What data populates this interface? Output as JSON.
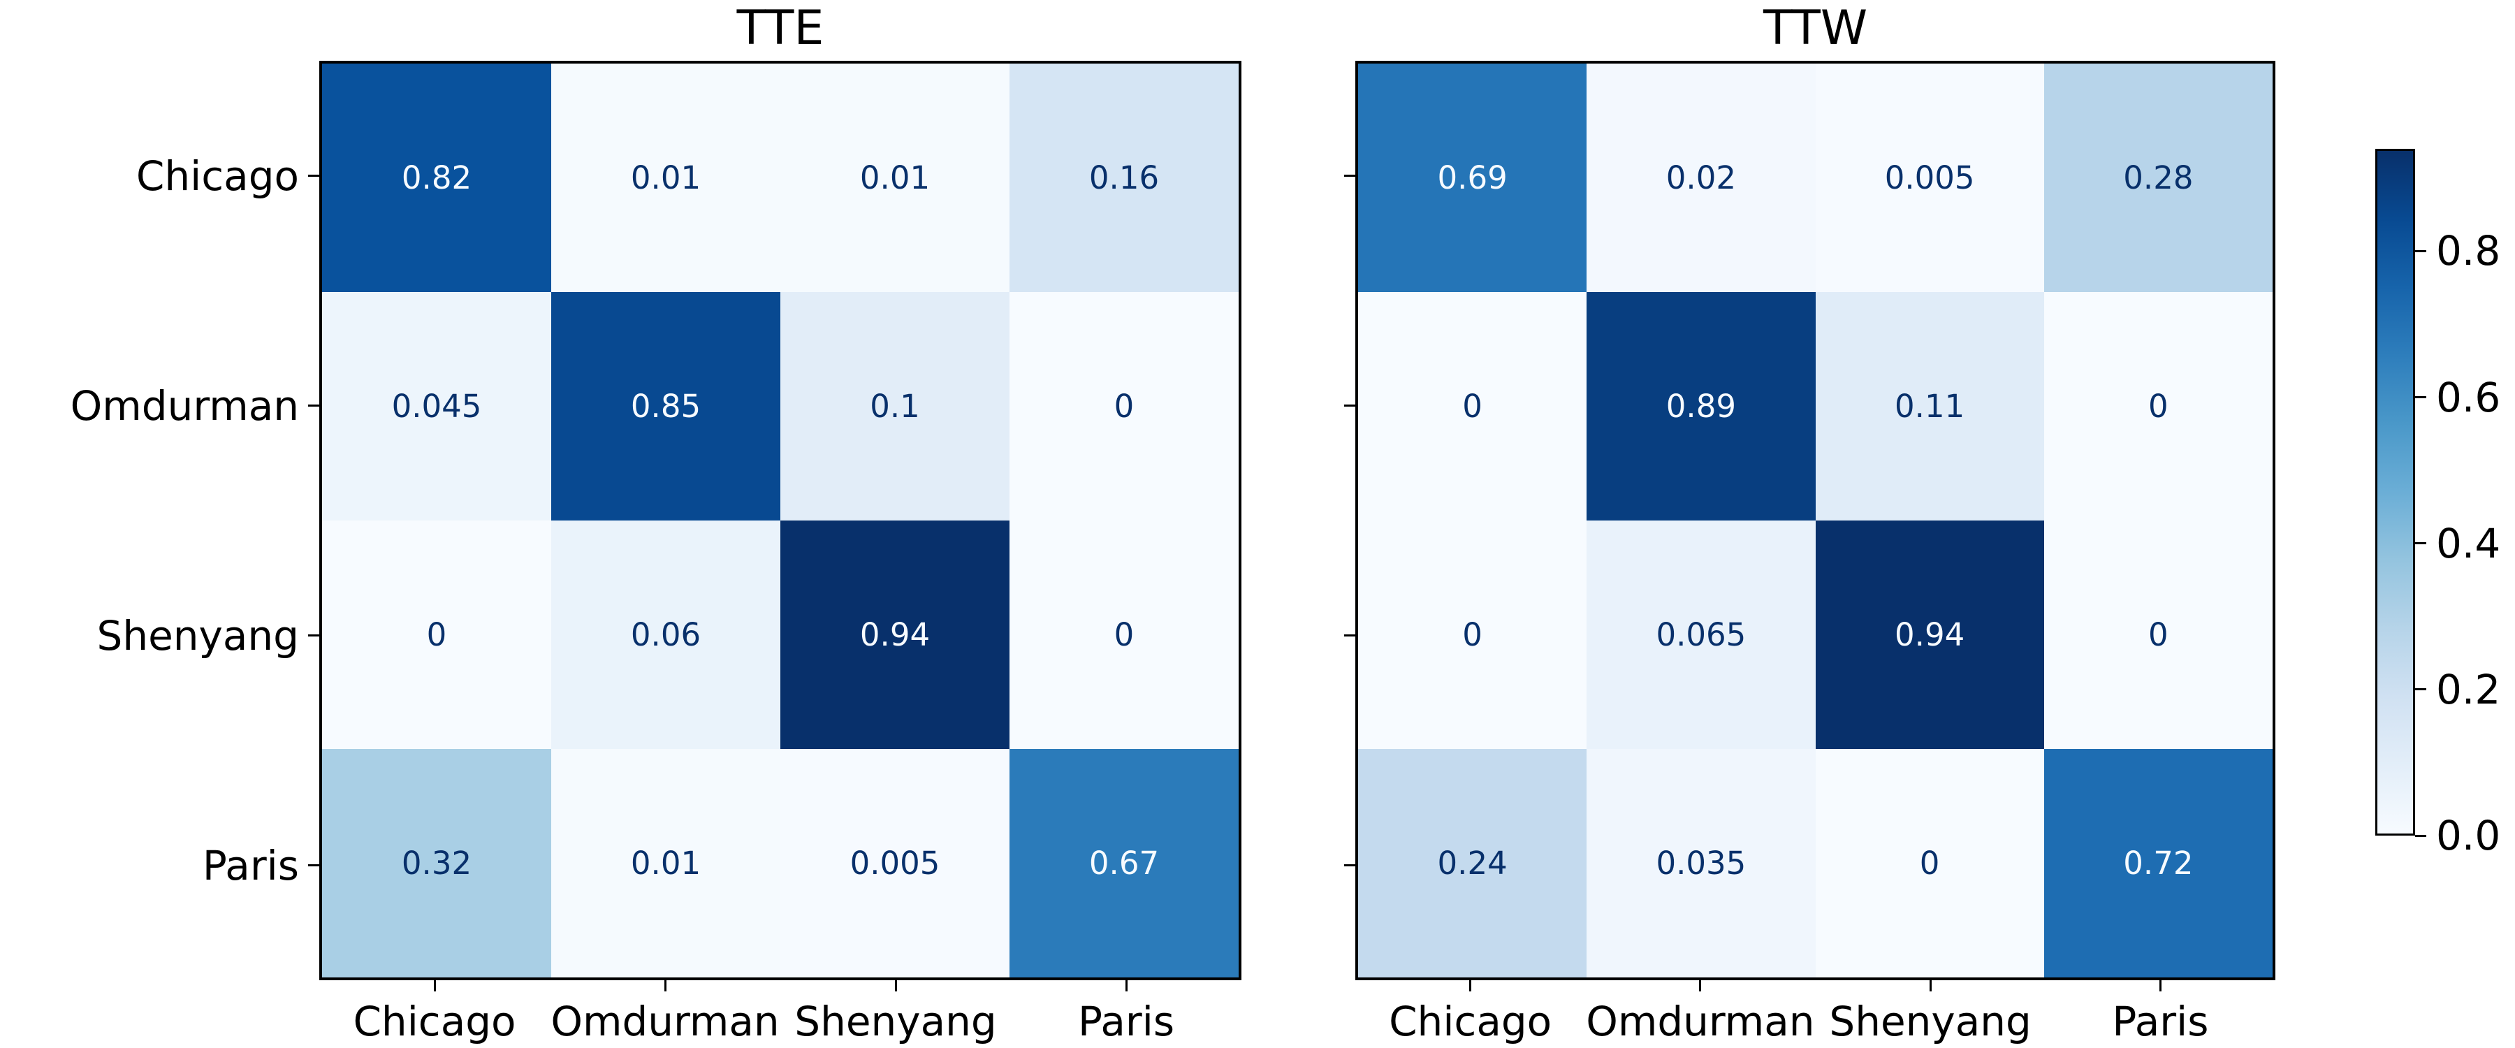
{
  "chart_data": [
    {
      "type": "heatmap",
      "title": "TTE",
      "x_categories": [
        "Chicago",
        "Omdurman",
        "Shenyang",
        "Paris"
      ],
      "y_categories": [
        "Chicago",
        "Omdurman",
        "Shenyang",
        "Paris"
      ],
      "values": [
        [
          0.82,
          0.01,
          0.01,
          0.16
        ],
        [
          0.045,
          0.85,
          0.1,
          0
        ],
        [
          0,
          0.06,
          0.94,
          0
        ],
        [
          0.32,
          0.01,
          0.005,
          0.67
        ]
      ],
      "colormap": "Blues",
      "vmin": 0,
      "vmax": 0.94,
      "grid": false,
      "legend_position": "none"
    },
    {
      "type": "heatmap",
      "title": "TTW",
      "x_categories": [
        "Chicago",
        "Omdurman",
        "Shenyang",
        "Paris"
      ],
      "y_categories": [
        "Chicago",
        "Omdurman",
        "Shenyang",
        "Paris"
      ],
      "values": [
        [
          0.69,
          0.02,
          0.005,
          0.28
        ],
        [
          0,
          0.89,
          0.11,
          0
        ],
        [
          0,
          0.065,
          0.94,
          0
        ],
        [
          0.24,
          0.035,
          0,
          0.72
        ]
      ],
      "colormap": "Blues",
      "vmin": 0,
      "vmax": 0.94,
      "grid": false,
      "legend_position": "none"
    }
  ],
  "colorbar": {
    "vmin": 0,
    "vmax": 0.94,
    "ticks": [
      {
        "label": "0.0",
        "value": 0.0
      },
      {
        "label": "0.2",
        "value": 0.2
      },
      {
        "label": "0.4",
        "value": 0.4
      },
      {
        "label": "0.6",
        "value": 0.6
      },
      {
        "label": "0.8",
        "value": 0.8
      }
    ]
  },
  "colors": {
    "background": "#ffffff",
    "border": "#000000",
    "cell_text_dark": "#08306b",
    "cell_text_light": "#f7fbff",
    "blues_stops": [
      [
        0.0,
        "#f7fbff"
      ],
      [
        0.125,
        "#deebf7"
      ],
      [
        0.25,
        "#c6dbef"
      ],
      [
        0.375,
        "#9ecae1"
      ],
      [
        0.5,
        "#6baed6"
      ],
      [
        0.625,
        "#4292c6"
      ],
      [
        0.75,
        "#2171b5"
      ],
      [
        0.875,
        "#08519c"
      ],
      [
        1.0,
        "#08306b"
      ]
    ]
  }
}
